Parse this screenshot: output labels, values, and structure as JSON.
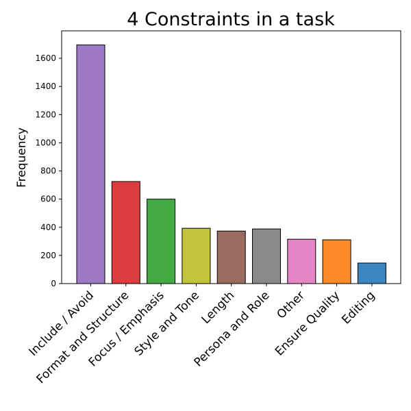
{
  "chart_data": {
    "type": "bar",
    "title": "4 Constraints in a task",
    "xlabel": "",
    "ylabel": "Frequency",
    "categories": [
      "Include / Avoid",
      "Format and Structure",
      "Focus / Emphasis",
      "Style and Tone",
      "Length",
      "Persona and Role",
      "Other",
      "Ensure Quality",
      "Editing"
    ],
    "values": [
      1695,
      725,
      600,
      393,
      373,
      388,
      315,
      311,
      146
    ],
    "colors": [
      "#9e7ac6",
      "#dc3c3e",
      "#43aa43",
      "#c4c43a",
      "#9a6b5f",
      "#898989",
      "#e585c8",
      "#fd8a29",
      "#3a86c0"
    ],
    "ylim": [
      0,
      1795
    ],
    "yticks": [
      0,
      200,
      400,
      600,
      800,
      1000,
      1200,
      1400,
      1600
    ],
    "grid": false,
    "legend": "none"
  }
}
